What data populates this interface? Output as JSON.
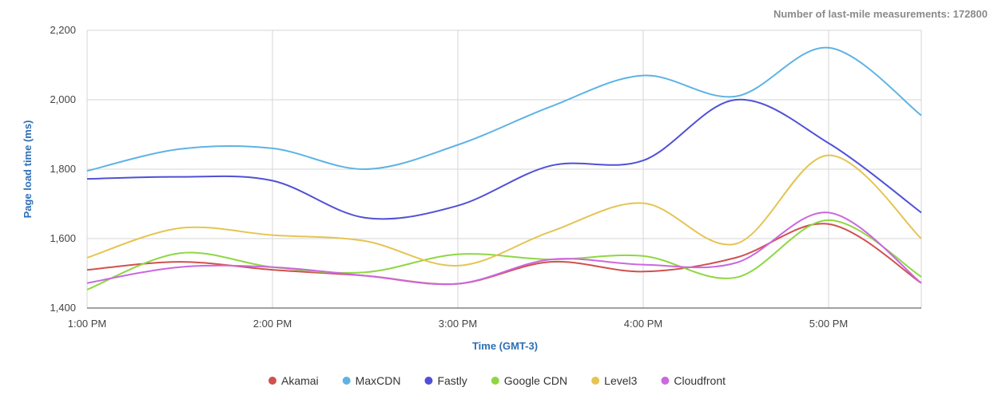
{
  "chart_data": {
    "type": "line",
    "subtitle": "Number of last-mile measurements: 172800",
    "xlabel": "Time (GMT-3)",
    "ylabel": "Page load time (ms)",
    "ylim": [
      1400,
      2200
    ],
    "xlim": [
      "1:00 PM",
      "5:30 PM"
    ],
    "y_ticks": [
      "1,400",
      "1,600",
      "1,800",
      "2,000",
      "2,200"
    ],
    "x_ticks": [
      "1:00 PM",
      "2:00 PM",
      "3:00 PM",
      "4:00 PM",
      "5:00 PM"
    ],
    "x": [
      "1:00 PM",
      "1:30 PM",
      "2:00 PM",
      "2:30 PM",
      "3:00 PM",
      "3:30 PM",
      "4:00 PM",
      "4:30 PM",
      "5:00 PM",
      "5:30 PM"
    ],
    "grid": true,
    "legend_position": "bottom",
    "series": [
      {
        "name": "Akamai",
        "color": "#d0504d",
        "values": [
          1510,
          1533,
          1510,
          1493,
          1470,
          1533,
          1505,
          1545,
          1642,
          1472
        ]
      },
      {
        "name": "MaxCDN",
        "color": "#5eb3e4",
        "values": [
          1795,
          1858,
          1860,
          1800,
          1870,
          1980,
          2070,
          2010,
          2150,
          1955
        ]
      },
      {
        "name": "Fastly",
        "color": "#5050d6",
        "values": [
          1772,
          1778,
          1767,
          1660,
          1695,
          1810,
          1825,
          2000,
          1875,
          1675
        ]
      },
      {
        "name": "Google CDN",
        "color": "#8ed743",
        "values": [
          1453,
          1558,
          1518,
          1503,
          1555,
          1540,
          1550,
          1488,
          1653,
          1490
        ]
      },
      {
        "name": "Level3",
        "color": "#e5c453",
        "values": [
          1545,
          1630,
          1610,
          1593,
          1522,
          1620,
          1702,
          1585,
          1840,
          1600
        ]
      },
      {
        "name": "Cloudfront",
        "color": "#cb67e0",
        "values": [
          1472,
          1518,
          1518,
          1493,
          1470,
          1540,
          1525,
          1530,
          1675,
          1472
        ]
      }
    ]
  }
}
